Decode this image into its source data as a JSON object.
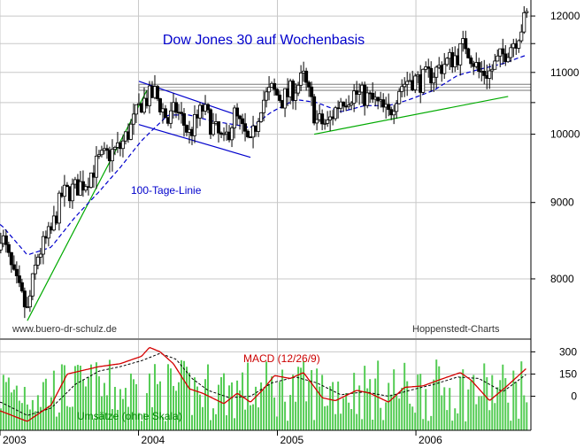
{
  "chart_data": [
    {
      "type": "candlestick",
      "title": "Dow Jones 30 auf Wochenbasis",
      "y_ticks": [
        8000,
        9000,
        10000,
        10500,
        11000,
        11500,
        12000
      ],
      "y_tick_labels": [
        "8000",
        "9000",
        "10000",
        "",
        "11000",
        "",
        "12000"
      ],
      "ylim": [
        7300,
        12300
      ],
      "y_scale": "log",
      "x_tick_labels": [
        "2003",
        "2004",
        "2005",
        "2006"
      ],
      "xlim": [
        "2003-01-01",
        "2006-10-31"
      ],
      "grid": true,
      "annotations": {
        "ma_label": "100-Tage-Linie",
        "source_left": "www.buero-dr-schulz.de",
        "source_right": "Hoppenstedt-Charts"
      },
      "price_anchors": [
        [
          "2003-01-03",
          8600
        ],
        [
          "2003-02-07",
          8000
        ],
        [
          "2003-03-14",
          7600
        ],
        [
          "2003-04-11",
          8300
        ],
        [
          "2003-05-16",
          8600
        ],
        [
          "2003-06-13",
          9100
        ],
        [
          "2003-07-18",
          9200
        ],
        [
          "2003-08-15",
          9300
        ],
        [
          "2003-09-19",
          9600
        ],
        [
          "2003-10-17",
          9700
        ],
        [
          "2003-11-14",
          9800
        ],
        [
          "2003-12-12",
          10100
        ],
        [
          "2004-01-09",
          10500
        ],
        [
          "2004-02-13",
          10650
        ],
        [
          "2004-03-19",
          10200
        ],
        [
          "2004-04-09",
          10400
        ],
        [
          "2004-05-14",
          10000
        ],
        [
          "2004-06-18",
          10400
        ],
        [
          "2004-07-16",
          10100
        ],
        [
          "2004-08-13",
          9850
        ],
        [
          "2004-09-10",
          10300
        ],
        [
          "2004-10-22",
          9800
        ],
        [
          "2004-11-19",
          10500
        ],
        [
          "2004-12-17",
          10700
        ],
        [
          "2005-01-14",
          10550
        ],
        [
          "2005-02-18",
          10750
        ],
        [
          "2005-03-11",
          10900
        ],
        [
          "2005-04-15",
          10200
        ],
        [
          "2005-05-13",
          10150
        ],
        [
          "2005-06-17",
          10550
        ],
        [
          "2005-07-22",
          10650
        ],
        [
          "2005-08-19",
          10600
        ],
        [
          "2005-09-16",
          10500
        ],
        [
          "2005-10-21",
          10300
        ],
        [
          "2005-11-18",
          10750
        ],
        [
          "2005-12-16",
          10900
        ],
        [
          "2006-01-13",
          10850
        ],
        [
          "2006-02-17",
          11000
        ],
        [
          "2006-03-17",
          11150
        ],
        [
          "2006-04-21",
          11300
        ],
        [
          "2006-05-12",
          11500
        ],
        [
          "2006-06-16",
          11000
        ],
        [
          "2006-07-14",
          11000
        ],
        [
          "2006-08-18",
          11300
        ],
        [
          "2006-09-22",
          11600
        ],
        [
          "2006-10-20",
          12000
        ]
      ],
      "ma100_anchors": [
        [
          "2003-01-03",
          8700
        ],
        [
          "2003-03-14",
          8300
        ],
        [
          "2003-05-16",
          8400
        ],
        [
          "2003-07-18",
          8800
        ],
        [
          "2003-09-19",
          9150
        ],
        [
          "2003-11-14",
          9500
        ],
        [
          "2004-01-09",
          9900
        ],
        [
          "2004-03-19",
          10300
        ],
        [
          "2004-05-14",
          10300
        ],
        [
          "2004-07-16",
          10200
        ],
        [
          "2004-09-10",
          10150
        ],
        [
          "2004-10-22",
          10100
        ],
        [
          "2004-12-17",
          10350
        ],
        [
          "2005-02-18",
          10550
        ],
        [
          "2005-04-15",
          10500
        ],
        [
          "2005-06-17",
          10350
        ],
        [
          "2005-08-19",
          10450
        ],
        [
          "2005-10-21",
          10450
        ],
        [
          "2005-12-16",
          10550
        ],
        [
          "2006-02-17",
          10700
        ],
        [
          "2006-04-21",
          10950
        ],
        [
          "2006-06-16",
          11050
        ],
        [
          "2006-08-18",
          11150
        ],
        [
          "2006-10-20",
          11300
        ]
      ],
      "resistance_band": [
        10700,
        10800
      ],
      "trendlines": [
        {
          "color": "#00aa00",
          "from": [
            "2003-03-14",
            7500
          ],
          "to": [
            "2004-01-23",
            10700
          ]
        },
        {
          "color": "#00aa00",
          "from": [
            "2005-04-08",
            10000
          ],
          "to": [
            "2006-09-01",
            10600
          ]
        },
        {
          "color": "#0000cc",
          "from": [
            "2004-01-02",
            10850
          ],
          "to": [
            "2004-09-17",
            10300
          ]
        },
        {
          "color": "#0000cc",
          "from": [
            "2004-01-02",
            10150
          ],
          "to": [
            "2004-10-22",
            9650
          ]
        }
      ]
    },
    {
      "type": "bar+line",
      "title": "MACD (12/26/9)",
      "y_ticks": [
        300,
        150,
        0
      ],
      "y_tick_labels": [
        "300",
        "150",
        "0"
      ],
      "ylim": [
        -230,
        380
      ],
      "volume_label": "Umsätze (ohne Skala)",
      "macd_anchors": [
        [
          "2003-01-03",
          -100
        ],
        [
          "2003-03-14",
          -170
        ],
        [
          "2003-05-16",
          -60
        ],
        [
          "2003-06-27",
          150
        ],
        [
          "2003-09-19",
          200
        ],
        [
          "2003-11-14",
          220
        ],
        [
          "2004-01-09",
          270
        ],
        [
          "2004-01-30",
          330
        ],
        [
          "2004-02-27",
          300
        ],
        [
          "2004-04-02",
          220
        ],
        [
          "2004-05-14",
          50
        ],
        [
          "2004-06-18",
          20
        ],
        [
          "2004-08-13",
          -50
        ],
        [
          "2004-09-17",
          20
        ],
        [
          "2004-10-22",
          -40
        ],
        [
          "2004-11-26",
          50
        ],
        [
          "2004-12-24",
          140
        ],
        [
          "2005-02-04",
          120
        ],
        [
          "2005-03-11",
          160
        ],
        [
          "2005-04-29",
          -10
        ],
        [
          "2005-06-03",
          -30
        ],
        [
          "2005-07-29",
          40
        ],
        [
          "2005-09-02",
          20
        ],
        [
          "2005-10-21",
          -40
        ],
        [
          "2005-12-02",
          60
        ],
        [
          "2006-01-20",
          70
        ],
        [
          "2006-03-03",
          110
        ],
        [
          "2006-04-28",
          160
        ],
        [
          "2006-05-26",
          110
        ],
        [
          "2006-07-14",
          -30
        ],
        [
          "2006-08-25",
          60
        ],
        [
          "2006-10-20",
          190
        ]
      ],
      "signal_anchors": [
        [
          "2003-01-03",
          -40
        ],
        [
          "2003-03-14",
          -130
        ],
        [
          "2003-05-16",
          -80
        ],
        [
          "2003-07-18",
          80
        ],
        [
          "2003-09-19",
          170
        ],
        [
          "2003-11-14",
          200
        ],
        [
          "2004-01-09",
          240
        ],
        [
          "2004-02-27",
          290
        ],
        [
          "2004-04-09",
          250
        ],
        [
          "2004-05-21",
          120
        ],
        [
          "2004-07-02",
          40
        ],
        [
          "2004-08-27",
          -10
        ],
        [
          "2004-10-22",
          0
        ],
        [
          "2004-12-17",
          90
        ],
        [
          "2005-02-18",
          130
        ],
        [
          "2005-04-15",
          90
        ],
        [
          "2005-06-17",
          10
        ],
        [
          "2005-08-19",
          30
        ],
        [
          "2005-10-21",
          0
        ],
        [
          "2005-12-16",
          40
        ],
        [
          "2006-02-17",
          80
        ],
        [
          "2006-04-21",
          130
        ],
        [
          "2006-06-16",
          120
        ],
        [
          "2006-08-18",
          30
        ],
        [
          "2006-10-20",
          150
        ]
      ]
    }
  ],
  "colors": {
    "candle_up": "#ffffff",
    "candle_down": "#000000",
    "ma_line": "#0000cc",
    "green_line": "#00aa00",
    "blue_line": "#0000cc",
    "macd_line": "#d40000",
    "signal_line": "#000000",
    "volume_bar": "#55cc55",
    "grid": "#c8c8c8",
    "title_text": "#0000cc",
    "macd_title_text": "#cc0000",
    "volume_label_text": "#008800",
    "source_text": "#333333"
  }
}
